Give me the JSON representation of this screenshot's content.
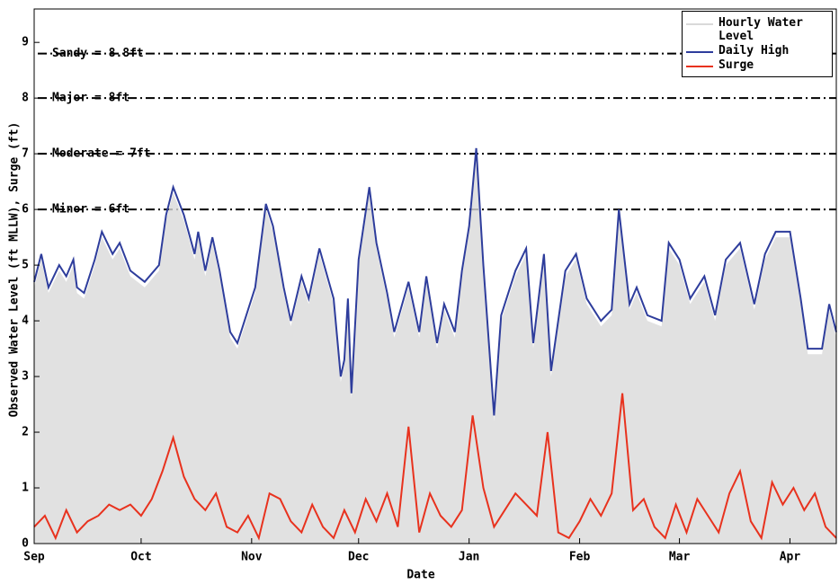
{
  "chart_data": {
    "type": "line",
    "x_label": "Date",
    "y_label": "Observed Water Level (ft MLLW), Surge (ft)",
    "xlim": [
      0,
      225
    ],
    "xticks": [
      {
        "value": 0,
        "label": "Sep"
      },
      {
        "value": 30,
        "label": "Oct"
      },
      {
        "value": 61,
        "label": "Nov"
      },
      {
        "value": 91,
        "label": "Dec"
      },
      {
        "value": 122,
        "label": "Jan"
      },
      {
        "value": 153,
        "label": "Feb"
      },
      {
        "value": 181,
        "label": "Mar"
      },
      {
        "value": 212,
        "label": "Apr"
      }
    ],
    "ylim": [
      0,
      9.6
    ],
    "yticks": [
      0,
      1,
      2,
      3,
      4,
      5,
      6,
      7,
      8,
      9
    ],
    "annotations": [
      {
        "label": "Sandy = 8.8ft",
        "value": 8.8
      },
      {
        "label": "Major = 8ft",
        "value": 8
      },
      {
        "label": "Moderate = 7ft",
        "value": 7
      },
      {
        "label": "Minor = 6ft",
        "value": 6
      }
    ],
    "series": [
      {
        "name": "Hourly Water Level",
        "color": "#d9d9d9",
        "style": "area",
        "x": [
          0,
          2,
          4,
          7,
          9,
          11,
          12,
          14,
          17,
          19,
          22,
          24,
          27,
          31,
          35,
          37,
          39,
          42,
          45,
          46,
          48,
          50,
          52,
          55,
          57,
          62,
          65,
          67,
          70,
          72,
          75,
          77,
          80,
          84,
          86,
          87,
          88,
          89,
          91,
          94,
          96,
          99,
          101,
          105,
          108,
          110,
          113,
          115,
          118,
          120,
          122,
          124,
          126,
          129,
          131,
          135,
          138,
          140,
          143,
          145,
          149,
          152,
          155,
          159,
          162,
          164,
          167,
          169,
          172,
          176,
          178,
          181,
          184,
          188,
          191,
          194,
          198,
          202,
          205,
          208,
          212,
          215,
          217,
          221,
          223,
          225
        ],
        "values": [
          4.6,
          5.1,
          4.5,
          4.9,
          4.7,
          5.0,
          4.5,
          4.4,
          5.0,
          5.5,
          5.1,
          5.3,
          4.8,
          4.6,
          4.9,
          5.8,
          6.3,
          5.8,
          5.1,
          5.5,
          4.8,
          5.4,
          4.8,
          3.7,
          3.5,
          4.5,
          6.0,
          5.6,
          4.5,
          3.9,
          4.7,
          4.3,
          5.2,
          4.3,
          2.9,
          3.2,
          4.3,
          2.6,
          5.0,
          6.3,
          5.3,
          4.4,
          3.7,
          4.6,
          3.7,
          4.7,
          3.5,
          4.2,
          3.7,
          4.8,
          5.6,
          7.0,
          4.9,
          2.2,
          4.0,
          4.8,
          5.2,
          3.5,
          5.1,
          3.0,
          4.8,
          5.1,
          4.3,
          3.9,
          4.1,
          5.9,
          4.2,
          4.5,
          4.0,
          3.9,
          5.3,
          5.0,
          4.3,
          4.7,
          4.0,
          5.0,
          5.3,
          4.2,
          5.1,
          5.5,
          5.5,
          4.3,
          3.4,
          3.4,
          4.2,
          3.7
        ]
      },
      {
        "name": "Daily High",
        "color": "#2e3d9c",
        "style": "line",
        "x": [
          0,
          2,
          4,
          7,
          9,
          11,
          12,
          14,
          17,
          19,
          22,
          24,
          27,
          31,
          35,
          37,
          39,
          42,
          45,
          46,
          48,
          50,
          52,
          55,
          57,
          62,
          65,
          67,
          70,
          72,
          75,
          77,
          80,
          84,
          86,
          87,
          88,
          89,
          91,
          94,
          96,
          99,
          101,
          105,
          108,
          110,
          113,
          115,
          118,
          120,
          122,
          124,
          126,
          129,
          131,
          135,
          138,
          140,
          143,
          145,
          149,
          152,
          155,
          159,
          162,
          164,
          167,
          169,
          172,
          176,
          178,
          181,
          184,
          188,
          191,
          194,
          198,
          202,
          205,
          208,
          212,
          215,
          217,
          221,
          223,
          225
        ],
        "values": [
          4.7,
          5.2,
          4.6,
          5.0,
          4.8,
          5.1,
          4.6,
          4.5,
          5.1,
          5.6,
          5.2,
          5.4,
          4.9,
          4.7,
          5.0,
          5.9,
          6.4,
          5.9,
          5.2,
          5.6,
          4.9,
          5.5,
          4.9,
          3.8,
          3.6,
          4.6,
          6.1,
          5.7,
          4.6,
          4.0,
          4.8,
          4.4,
          5.3,
          4.4,
          3.0,
          3.3,
          4.4,
          2.7,
          5.1,
          6.4,
          5.4,
          4.5,
          3.8,
          4.7,
          3.8,
          4.8,
          3.6,
          4.3,
          3.8,
          4.9,
          5.7,
          7.1,
          5.0,
          2.3,
          4.1,
          4.9,
          5.3,
          3.6,
          5.2,
          3.1,
          4.9,
          5.2,
          4.4,
          4.0,
          4.2,
          6.0,
          4.3,
          4.6,
          4.1,
          4.0,
          5.4,
          5.1,
          4.4,
          4.8,
          4.1,
          5.1,
          5.4,
          4.3,
          5.2,
          5.6,
          5.6,
          4.4,
          3.5,
          3.5,
          4.3,
          3.8
        ]
      },
      {
        "name": "Surge",
        "color": "#e8321e",
        "style": "line",
        "x": [
          0,
          3,
          6,
          9,
          12,
          15,
          18,
          21,
          24,
          27,
          30,
          33,
          36,
          39,
          42,
          45,
          48,
          51,
          54,
          57,
          60,
          63,
          66,
          69,
          72,
          75,
          78,
          81,
          84,
          87,
          90,
          93,
          96,
          99,
          102,
          105,
          108,
          111,
          114,
          117,
          120,
          123,
          126,
          129,
          132,
          135,
          138,
          141,
          144,
          147,
          150,
          153,
          156,
          159,
          162,
          165,
          168,
          171,
          174,
          177,
          180,
          183,
          186,
          189,
          192,
          195,
          198,
          201,
          204,
          207,
          210,
          213,
          216,
          219,
          222,
          225
        ],
        "values": [
          0.3,
          0.5,
          0.1,
          0.6,
          0.2,
          0.4,
          0.5,
          0.7,
          0.6,
          0.7,
          0.5,
          0.8,
          1.3,
          1.9,
          1.2,
          0.8,
          0.6,
          0.9,
          0.3,
          0.2,
          0.5,
          0.1,
          0.9,
          0.8,
          0.4,
          0.2,
          0.7,
          0.3,
          0.1,
          0.6,
          0.2,
          0.8,
          0.4,
          0.9,
          0.3,
          2.1,
          0.2,
          0.9,
          0.5,
          0.3,
          0.6,
          2.3,
          1.0,
          0.3,
          0.6,
          0.9,
          0.7,
          0.5,
          2.0,
          0.2,
          0.1,
          0.4,
          0.8,
          0.5,
          0.9,
          2.7,
          0.6,
          0.8,
          0.3,
          0.1,
          0.7,
          0.2,
          0.8,
          0.5,
          0.2,
          0.9,
          1.3,
          0.4,
          0.1,
          1.1,
          0.7,
          1.0,
          0.6,
          0.9,
          0.3,
          0.1
        ]
      }
    ]
  }
}
